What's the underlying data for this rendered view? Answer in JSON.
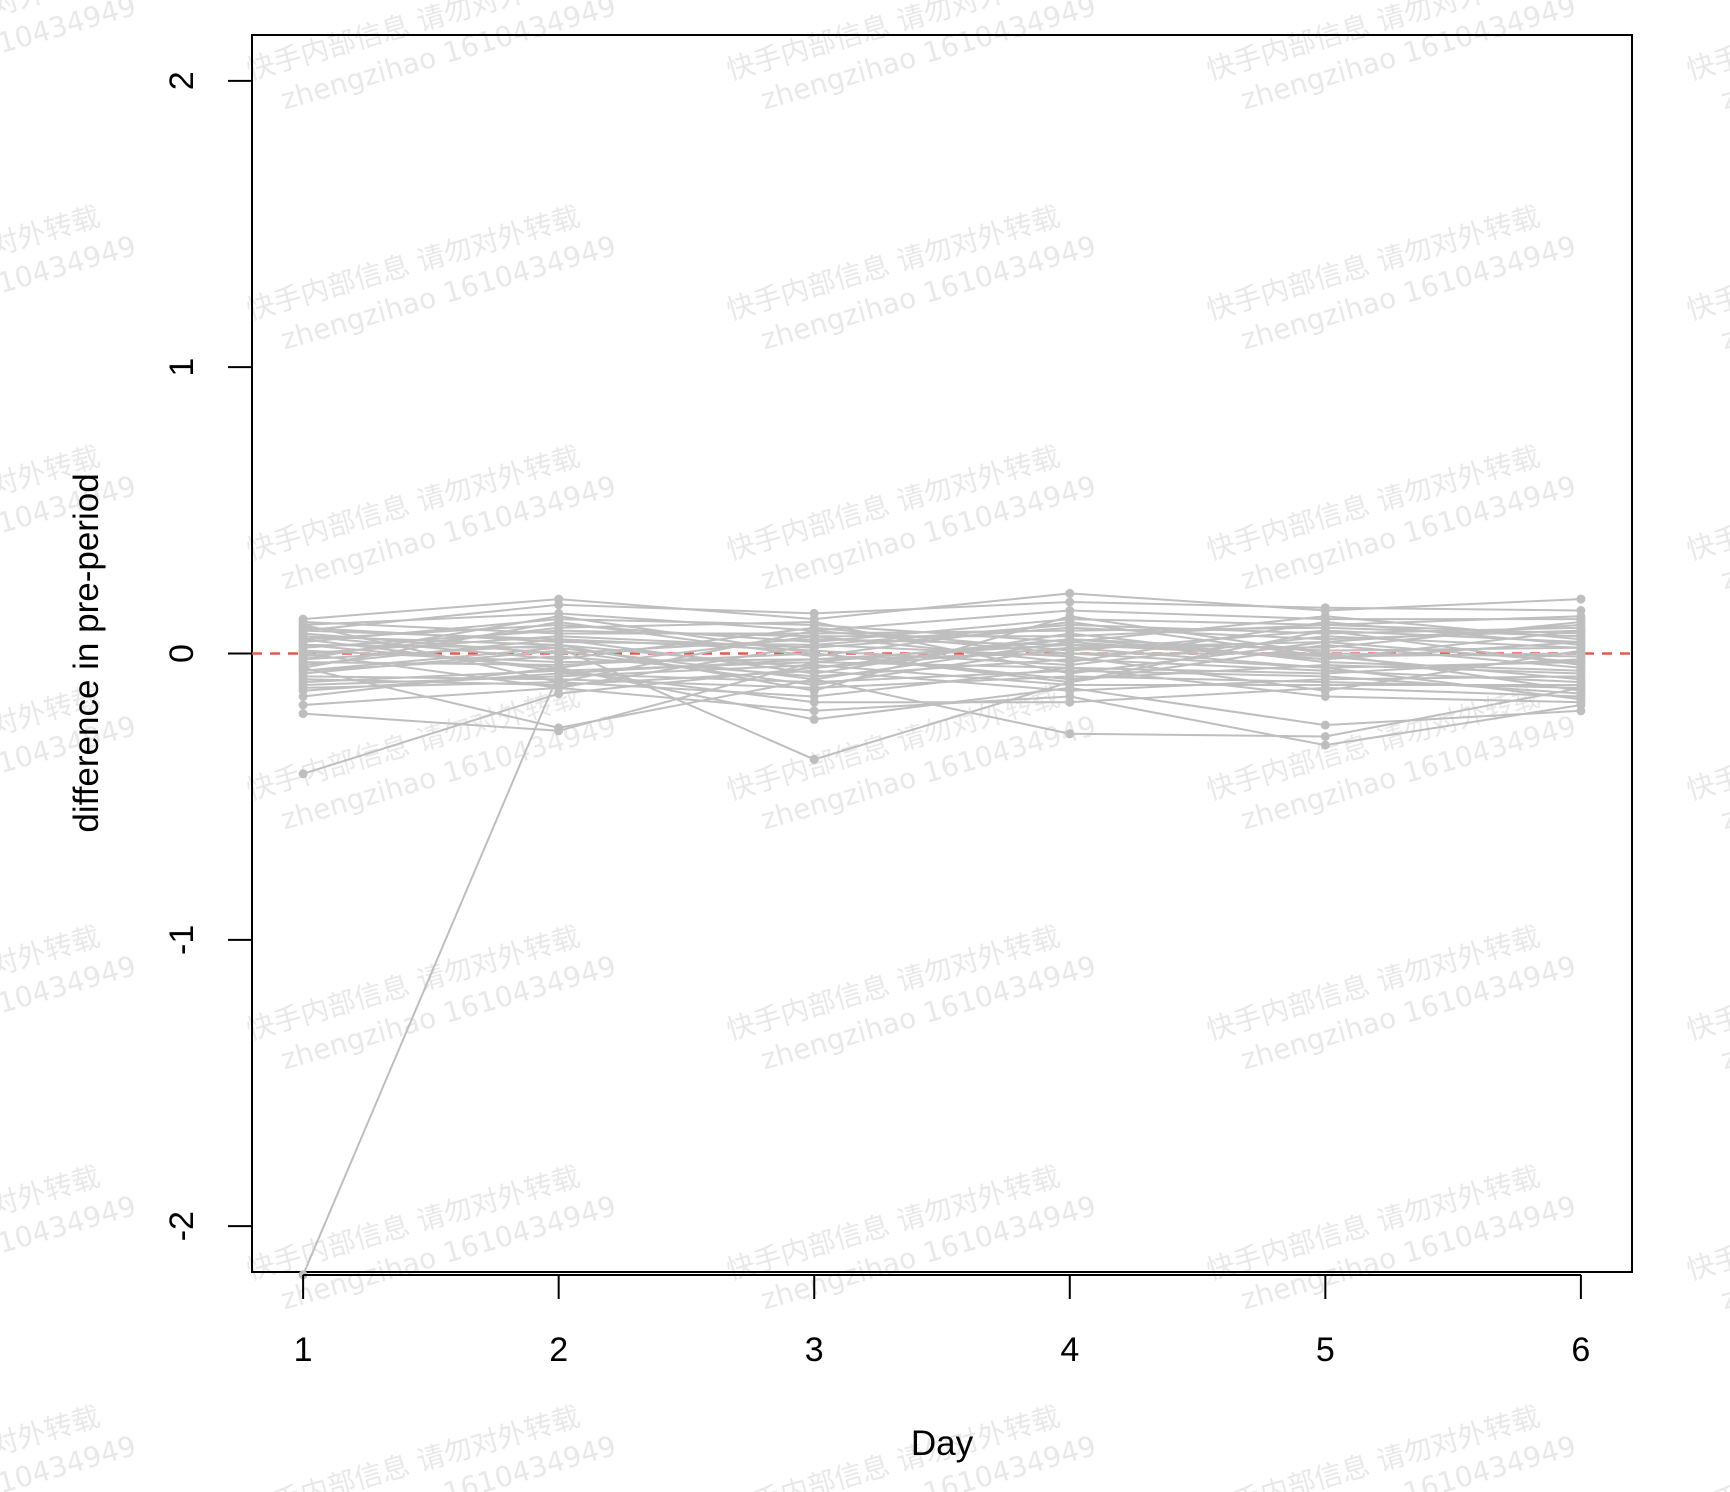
{
  "chart_data": {
    "type": "line",
    "title": "",
    "xlabel": "Day",
    "ylabel": "difference in pre-period",
    "x": [
      1,
      2,
      3,
      4,
      5,
      6
    ],
    "x_ticks": [
      "1",
      "2",
      "3",
      "4",
      "5",
      "6"
    ],
    "y_ticks": [
      "-2",
      "-1",
      "0",
      "1",
      "2"
    ],
    "y_tick_values": [
      -2,
      -1,
      0,
      1,
      2
    ],
    "xlim": [
      0.8,
      6.2
    ],
    "ylim": [
      -2.16,
      2.16
    ],
    "reference_line": {
      "y": 0,
      "color": "#e8584f",
      "style": "dashed"
    },
    "series_color": "#bebebe",
    "grid": false,
    "legend": "none",
    "series": [
      {
        "values": [
          -2.17,
          -0.07,
          -0.02,
          0.03,
          -0.01,
          0.0
        ]
      },
      {
        "values": [
          -0.42,
          -0.14,
          -0.05,
          0.02,
          0.04,
          -0.03
        ]
      },
      {
        "values": [
          -0.21,
          -0.27,
          -0.03,
          0.05,
          0.01,
          0.02
        ]
      },
      {
        "values": [
          -0.05,
          -0.26,
          -0.09,
          -0.28,
          -0.29,
          -0.12
        ]
      },
      {
        "values": [
          0.03,
          0.02,
          -0.37,
          -0.1,
          0.03,
          -0.05
        ]
      },
      {
        "values": [
          0.12,
          0.19,
          0.12,
          0.21,
          0.15,
          0.19
        ]
      },
      {
        "values": [
          0.08,
          0.17,
          0.14,
          0.18,
          0.16,
          0.15
        ]
      },
      {
        "values": [
          -0.18,
          -0.12,
          -0.2,
          -0.15,
          -0.32,
          -0.18
        ]
      },
      {
        "values": [
          -0.15,
          -0.05,
          -0.23,
          -0.12,
          -0.25,
          -0.2
        ]
      },
      {
        "values": [
          0.1,
          0.14,
          0.08,
          0.15,
          0.12,
          0.12
        ]
      },
      {
        "values": [
          0.05,
          0.1,
          0.04,
          0.12,
          0.1,
          0.13
        ]
      },
      {
        "values": [
          -0.12,
          -0.1,
          -0.15,
          -0.05,
          -0.15,
          -0.17
        ]
      },
      {
        "values": [
          0.0,
          0.06,
          0.02,
          0.09,
          0.05,
          0.08
        ]
      },
      {
        "values": [
          -0.02,
          0.03,
          -0.05,
          0.05,
          -0.02,
          0.04
        ]
      },
      {
        "values": [
          0.06,
          -0.02,
          0.09,
          0.01,
          0.08,
          -0.04
        ]
      },
      {
        "values": [
          -0.08,
          -0.09,
          -0.12,
          -0.08,
          -0.1,
          -0.12
        ]
      },
      {
        "values": [
          0.02,
          0.08,
          0.06,
          0.06,
          0.1,
          0.07
        ]
      },
      {
        "values": [
          -0.06,
          -0.01,
          -0.08,
          -0.02,
          -0.06,
          -0.1
        ]
      },
      {
        "values": [
          0.09,
          0.04,
          0.03,
          0.1,
          0.07,
          0.09
        ]
      },
      {
        "values": [
          -0.1,
          -0.06,
          -0.17,
          -0.17,
          -0.12,
          -0.15
        ]
      },
      {
        "values": [
          0.04,
          0.12,
          0.1,
          0.04,
          0.13,
          0.05
        ]
      },
      {
        "values": [
          -0.03,
          -0.04,
          0.0,
          -0.09,
          -0.04,
          -0.07
        ]
      },
      {
        "values": [
          0.07,
          0.0,
          0.05,
          0.03,
          0.02,
          0.11
        ]
      },
      {
        "values": [
          -0.13,
          -0.07,
          -0.1,
          -0.06,
          -0.08,
          -0.14
        ]
      },
      {
        "values": [
          0.01,
          -0.03,
          -0.02,
          0.0,
          0.0,
          -0.01
        ]
      },
      {
        "values": [
          -0.04,
          0.05,
          0.01,
          -0.04,
          0.06,
          0.02
        ]
      },
      {
        "values": [
          0.11,
          0.07,
          0.07,
          0.08,
          0.09,
          0.06
        ]
      },
      {
        "values": [
          -0.09,
          -0.11,
          -0.06,
          -0.13,
          -0.09,
          -0.08
        ]
      },
      {
        "values": [
          -0.07,
          0.01,
          -0.11,
          0.02,
          -0.05,
          -0.16
        ]
      },
      {
        "values": [
          0.05,
          -0.06,
          -0.03,
          -0.05,
          -0.07,
          -0.02
        ]
      },
      {
        "values": [
          -0.01,
          0.09,
          0.11,
          -0.07,
          0.04,
          0.1
        ]
      },
      {
        "values": [
          0.08,
          0.05,
          -0.07,
          0.07,
          -0.03,
          -0.06
        ]
      },
      {
        "values": [
          -0.11,
          -0.08,
          -0.04,
          -0.11,
          -0.11,
          -0.11
        ]
      },
      {
        "values": [
          0.03,
          -0.05,
          0.06,
          -0.03,
          0.11,
          0.03
        ]
      },
      {
        "values": [
          -0.05,
          0.11,
          -0.01,
          0.11,
          -0.01,
          -0.09
        ]
      },
      {
        "values": [
          0.0,
          -0.12,
          0.03,
          -0.01,
          -0.13,
          0.01
        ]
      },
      {
        "values": [
          0.06,
          0.03,
          -0.13,
          0.13,
          0.0,
          -0.13
        ]
      },
      {
        "values": [
          -0.02,
          0.13,
          0.0,
          -0.1,
          0.08,
          0.04
        ]
      },
      {
        "values": [
          0.1,
          -0.1,
          0.08,
          0.0,
          -0.05,
          -0.03
        ]
      },
      {
        "values": [
          -0.06,
          0.02,
          -0.09,
          0.04,
          -0.02,
          0.08
        ]
      }
    ]
  },
  "watermark": {
    "line1": "快手内部信息 请勿对外转载",
    "line2": "zhengzihao 1610434949"
  }
}
